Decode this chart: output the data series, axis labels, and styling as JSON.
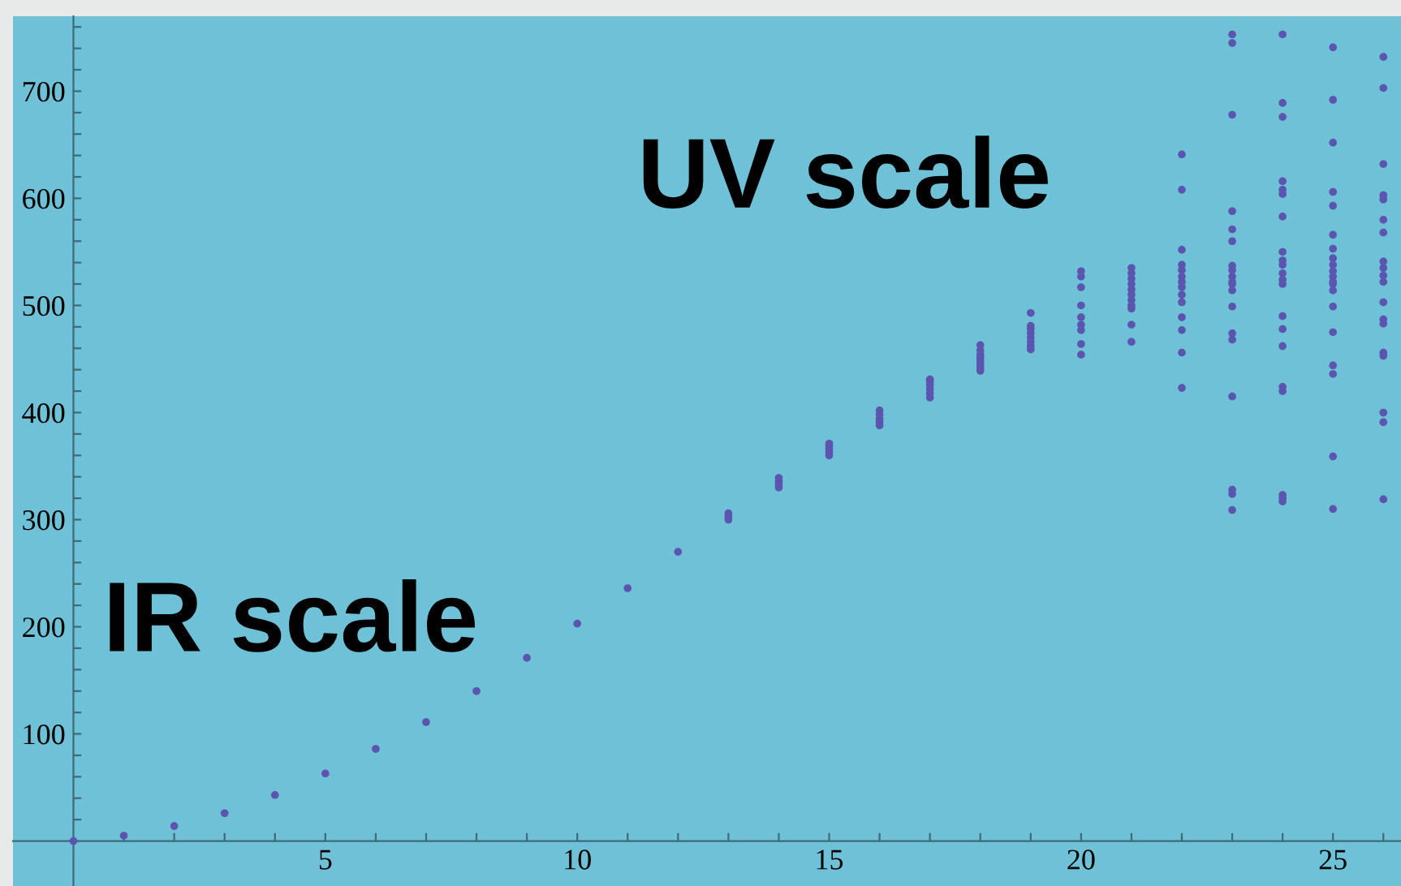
{
  "chart_data": {
    "type": "scatter",
    "annotations": [
      "IR scale",
      "UV scale"
    ],
    "series": [
      {
        "color": "#5b55b0",
        "x": [
          0,
          1,
          2,
          3,
          4,
          5,
          6,
          7,
          8,
          9,
          10,
          11,
          12,
          13,
          13,
          13,
          14,
          14,
          14,
          14,
          15,
          15,
          15,
          15,
          15,
          16,
          16,
          16,
          16,
          16,
          17,
          17,
          17,
          17,
          17,
          17,
          18,
          18,
          18,
          18,
          18,
          18,
          18,
          18,
          19,
          19,
          19,
          19,
          19,
          19,
          19,
          19,
          20,
          20,
          20,
          20,
          20,
          20,
          20,
          20,
          20,
          21,
          21,
          21,
          21,
          21,
          21,
          21,
          21,
          21,
          21,
          21,
          22,
          22,
          22,
          22,
          22,
          22,
          22,
          22,
          22,
          22,
          22,
          22,
          22,
          22,
          23,
          23,
          23,
          23,
          23,
          23,
          23,
          23,
          23,
          23,
          23,
          23,
          23,
          23,
          23,
          23,
          23,
          23,
          23,
          24,
          24,
          24,
          24,
          24,
          24,
          24,
          24,
          24,
          24,
          24,
          24,
          24,
          24,
          24,
          24,
          24,
          24,
          24,
          24,
          24,
          25,
          25,
          25,
          25,
          25,
          25,
          25,
          25,
          25,
          25,
          25,
          25,
          25,
          25,
          25,
          25,
          25,
          25,
          25,
          25,
          26,
          26,
          26,
          26,
          26,
          26,
          26,
          26,
          26,
          26,
          26,
          26,
          26,
          26,
          26,
          26,
          26,
          26,
          26
        ],
        "values": [
          0,
          5,
          14,
          26,
          43,
          63,
          86,
          111,
          140,
          171,
          203,
          236,
          270,
          300,
          303,
          306,
          330,
          333,
          336,
          339,
          360,
          363,
          366,
          369,
          371,
          388,
          391,
          394,
          398,
          402,
          414,
          418,
          422,
          426,
          429,
          431,
          439,
          442,
          445,
          448,
          451,
          454,
          458,
          463,
          459,
          462,
          466,
          470,
          474,
          478,
          481,
          493,
          532,
          527,
          517,
          500,
          489,
          482,
          477,
          464,
          454,
          535,
          530,
          525,
          520,
          515,
          510,
          505,
          500,
          497,
          482,
          466,
          641,
          608,
          552,
          538,
          533,
          527,
          522,
          517,
          510,
          503,
          489,
          477,
          456,
          423,
          753,
          745,
          678,
          588,
          571,
          560,
          537,
          533,
          527,
          522,
          520,
          514,
          499,
          474,
          468,
          415,
          328,
          324,
          309,
          753,
          689,
          676,
          616,
          608,
          604,
          583,
          550,
          542,
          538,
          530,
          524,
          520,
          490,
          478,
          462,
          424,
          420,
          323,
          320,
          317,
          741,
          692,
          652,
          606,
          593,
          566,
          553,
          544,
          538,
          532,
          527,
          522,
          520,
          514,
          499,
          475,
          444,
          436,
          359,
          310,
          732,
          703,
          632,
          603,
          599,
          580,
          568,
          541,
          535,
          528,
          522,
          503,
          487,
          483,
          456,
          453,
          400,
          391,
          319
        ]
      }
    ],
    "marker": "circle",
    "grid": false,
    "legend": false,
    "xlim": [
      -1.2,
      26.35
    ],
    "ylim": [
      -42,
      770
    ],
    "xticks": [
      {
        "value": 1,
        "label": null
      },
      {
        "value": 2,
        "label": null
      },
      {
        "value": 3,
        "label": null
      },
      {
        "value": 4,
        "label": null
      },
      5,
      {
        "value": 6,
        "label": null
      },
      {
        "value": 7,
        "label": null
      },
      {
        "value": 8,
        "label": null
      },
      {
        "value": 9,
        "label": null
      },
      10,
      {
        "value": 11,
        "label": null
      },
      {
        "value": 12,
        "label": null
      },
      {
        "value": 13,
        "label": null
      },
      {
        "value": 14,
        "label": null
      },
      15,
      {
        "value": 16,
        "label": null
      },
      {
        "value": 17,
        "label": null
      },
      {
        "value": 18,
        "label": null
      },
      {
        "value": 19,
        "label": null
      },
      20,
      {
        "value": 21,
        "label": null
      },
      {
        "value": 22,
        "label": null
      },
      {
        "value": 23,
        "label": null
      },
      {
        "value": 24,
        "label": null
      },
      25,
      {
        "value": 26,
        "label": null
      }
    ],
    "yticks": [
      {
        "value": 20,
        "label": null
      },
      {
        "value": 40,
        "label": null
      },
      {
        "value": 60,
        "label": null
      },
      {
        "value": 80,
        "label": null
      },
      100,
      {
        "value": 120,
        "label": null
      },
      {
        "value": 140,
        "label": null
      },
      {
        "value": 160,
        "label": null
      },
      {
        "value": 180,
        "label": null
      },
      200,
      {
        "value": 220,
        "label": null
      },
      {
        "value": 240,
        "label": null
      },
      {
        "value": 260,
        "label": null
      },
      {
        "value": 280,
        "label": null
      },
      300,
      {
        "value": 320,
        "label": null
      },
      {
        "value": 340,
        "label": null
      },
      {
        "value": 360,
        "label": null
      },
      {
        "value": 380,
        "label": null
      },
      400,
      {
        "value": 420,
        "label": null
      },
      {
        "value": 440,
        "label": null
      },
      {
        "value": 460,
        "label": null
      },
      {
        "value": 480,
        "label": null
      },
      500,
      {
        "value": 520,
        "label": null
      },
      {
        "value": 540,
        "label": null
      },
      {
        "value": 560,
        "label": null
      },
      {
        "value": 580,
        "label": null
      },
      600,
      {
        "value": 620,
        "label": null
      },
      {
        "value": 640,
        "label": null
      },
      {
        "value": 660,
        "label": null
      },
      {
        "value": 680,
        "label": null
      },
      700,
      {
        "value": 720,
        "label": null
      },
      {
        "value": 740,
        "label": null
      },
      {
        "value": 760,
        "label": null
      }
    ]
  }
}
